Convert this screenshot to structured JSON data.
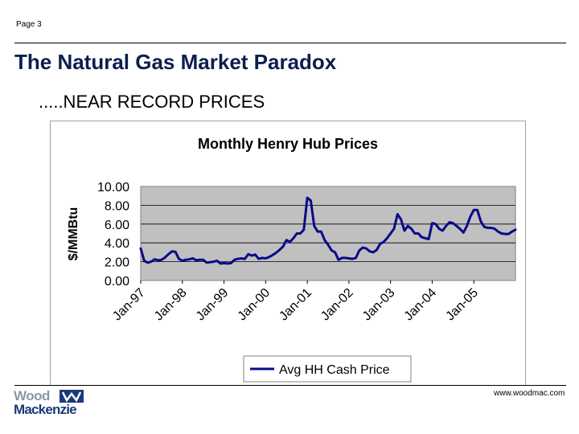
{
  "page": {
    "number": "Page 3",
    "url": "www.woodmac.com"
  },
  "slide": {
    "title": "The Natural Gas Market Paradox",
    "subtitle": ".....NEAR RECORD PRICES"
  },
  "logo": {
    "line1": "Wood",
    "line2": "Mackenzie"
  },
  "colors": {
    "line": "#0a0a8c",
    "plot_bg": "#c0c0c0",
    "title": "#0b1f4d"
  },
  "chart_data": {
    "type": "line",
    "title": "Monthly Henry Hub Prices",
    "xlabel": "",
    "ylabel": "$/MMBtu",
    "ylim": [
      0,
      10
    ],
    "yticks": [
      "0.00",
      "2.00",
      "4.00",
      "6.00",
      "8.00",
      "10.00"
    ],
    "xticks": [
      "Jan-97",
      "Jan-98",
      "Jan-99",
      "Jan-00",
      "Jan-01",
      "Jan-02",
      "Jan-03",
      "Jan-04",
      "Jan-05"
    ],
    "grid": true,
    "legend": "bottom",
    "series": [
      {
        "name": "Avg HH Cash Price",
        "start": "Jan-97",
        "frequency": "monthly",
        "values": [
          3.4,
          2.1,
          1.9,
          2.0,
          2.25,
          2.15,
          2.2,
          2.45,
          2.8,
          3.1,
          3.05,
          2.3,
          2.1,
          2.2,
          2.25,
          2.35,
          2.15,
          2.2,
          2.2,
          1.9,
          1.95,
          2.0,
          2.1,
          1.8,
          1.85,
          1.8,
          1.85,
          2.2,
          2.3,
          2.35,
          2.3,
          2.8,
          2.65,
          2.75,
          2.3,
          2.4,
          2.35,
          2.5,
          2.7,
          2.95,
          3.25,
          3.6,
          4.3,
          4.1,
          4.5,
          5.0,
          5.0,
          5.4,
          8.8,
          8.5,
          5.8,
          5.2,
          5.2,
          4.3,
          3.8,
          3.2,
          3.0,
          2.2,
          2.4,
          2.4,
          2.35,
          2.3,
          2.4,
          3.2,
          3.5,
          3.4,
          3.1,
          3.0,
          3.25,
          3.9,
          4.1,
          4.5,
          5.0,
          5.5,
          7.05,
          6.5,
          5.3,
          5.8,
          5.5,
          5.0,
          5.0,
          4.6,
          4.5,
          4.4,
          6.1,
          6.0,
          5.5,
          5.3,
          5.8,
          6.2,
          6.1,
          5.8,
          5.5,
          5.1,
          5.8,
          6.8,
          7.5,
          7.5,
          6.3,
          5.7,
          5.6,
          5.6,
          5.5,
          5.2,
          5.0,
          4.95,
          4.95,
          5.2,
          5.4
        ]
      }
    ]
  }
}
